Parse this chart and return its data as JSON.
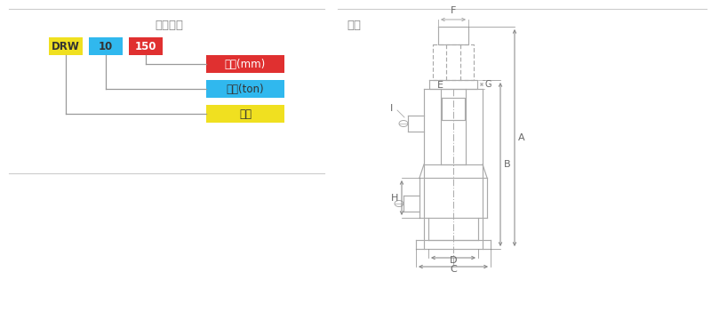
{
  "title_left": "型号说明",
  "title_right": "尺寸",
  "bg_color": "#ffffff",
  "box_drw": {
    "label": "DRW",
    "color": "#f0e020",
    "text_color": "#333333"
  },
  "box_10": {
    "label": "10",
    "color": "#30b8ee",
    "text_color": "#333333"
  },
  "box_150": {
    "label": "150",
    "color": "#e03030",
    "text_color": "#ffffff"
  },
  "legend_boxes": [
    {
      "label": "行程(mm)",
      "color": "#e03030",
      "text_color": "#ffffff"
    },
    {
      "label": "载荷(ton)",
      "color": "#30b8ee",
      "text_color": "#333333"
    },
    {
      "label": "型号",
      "color": "#f0e020",
      "text_color": "#333333"
    }
  ],
  "line_color": "#cccccc",
  "draw_color": "#aaaaaa",
  "sep_color": "#cccccc"
}
